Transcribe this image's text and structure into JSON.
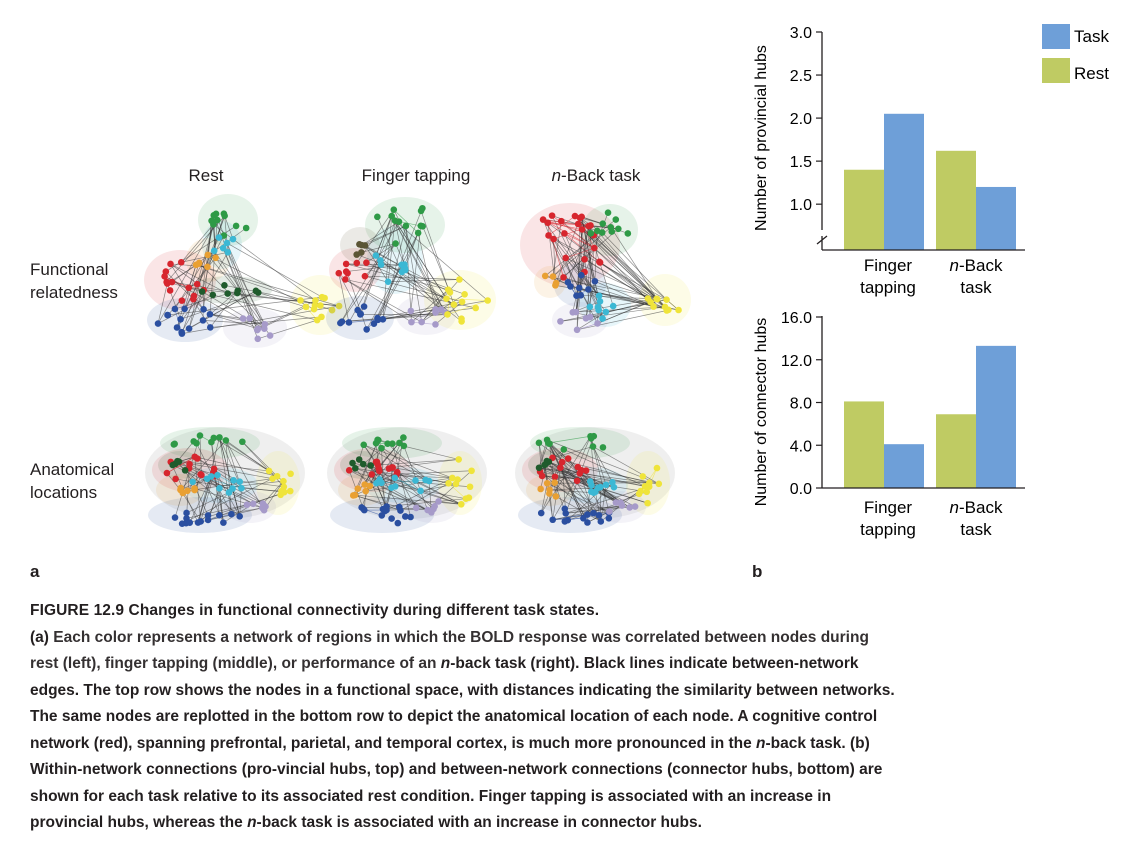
{
  "panel_a": {
    "columns": [
      "Rest",
      "Finger tapping",
      "n-Back task"
    ],
    "rows": [
      [
        "Functional",
        "relatedness"
      ],
      [
        "Anatomical",
        "locations"
      ]
    ],
    "letter": "a",
    "network_colors": {
      "green": "#2e9a46",
      "cyan": "#3bb8d4",
      "red": "#d7262e",
      "orange": "#e9a032",
      "blue": "#2b4fa0",
      "lavender": "#a69ac9",
      "yellow": "#efe43a",
      "darkgreen": "#1f5b2c",
      "olive": "#5b5535"
    }
  },
  "panel_b": {
    "letter": "b",
    "legend": [
      {
        "label": "Task",
        "color": "#6e9fd8"
      },
      {
        "label": "Rest",
        "color": "#bfcb63"
      }
    ]
  },
  "chart_data": [
    {
      "type": "bar",
      "ylabel": "Number of provincial hubs",
      "categories": [
        [
          "Finger",
          "tapping"
        ],
        [
          "n-Back",
          "task"
        ]
      ],
      "ylim": [
        0.7,
        3.0
      ],
      "axis_break": true,
      "yticks": [
        "1.0",
        "1.5",
        "2.0",
        "2.5",
        "3.0"
      ],
      "series": [
        {
          "name": "Rest",
          "values": [
            1.4,
            1.62
          ]
        },
        {
          "name": "Task",
          "values": [
            2.05,
            1.2
          ]
        }
      ]
    },
    {
      "type": "bar",
      "ylabel": "Number of connector hubs",
      "categories": [
        [
          "Finger",
          "tapping"
        ],
        [
          "n-Back",
          "task"
        ]
      ],
      "ylim": [
        0,
        16
      ],
      "yticks": [
        "0.0",
        "4.0",
        "8.0",
        "12.0",
        "16.0"
      ],
      "series": [
        {
          "name": "Rest",
          "values": [
            8.1,
            6.9
          ]
        },
        {
          "name": "Task",
          "values": [
            4.1,
            13.3
          ]
        }
      ]
    }
  ],
  "caption": {
    "title": "FIGURE 12.9 Changes in functional connectivity during different task states.",
    "a_marker": "(a)",
    "a_1": " Each color represents a network of regions in which the BOLD response was correlated between nodes during rest (left), finger tapping (middle), or performance of an ",
    "a_2": "-back task (right). Black lines indicate between-network edges. The top row shows the nodes in a functional space, with distances indicating the similarity between networks. The same nodes are replotted in the bottom row to depict the anatomical location of each node. A cognitive control network (red), spanning prefrontal, parietal, and temporal cortex, is much more pronounced in the ",
    "a_3": "-back task. ",
    "b_marker": "(b)",
    "b_1": " Within-network connections (pro-vincial hubs, top) and between-network connections (connector hubs, bottom) are shown for each task relative to its associated rest condition. Finger tapping is associated with an increase in provincial hubs, whereas the ",
    "b_2": "-back task is associated with an increase in connector hubs.",
    "n": "n"
  }
}
